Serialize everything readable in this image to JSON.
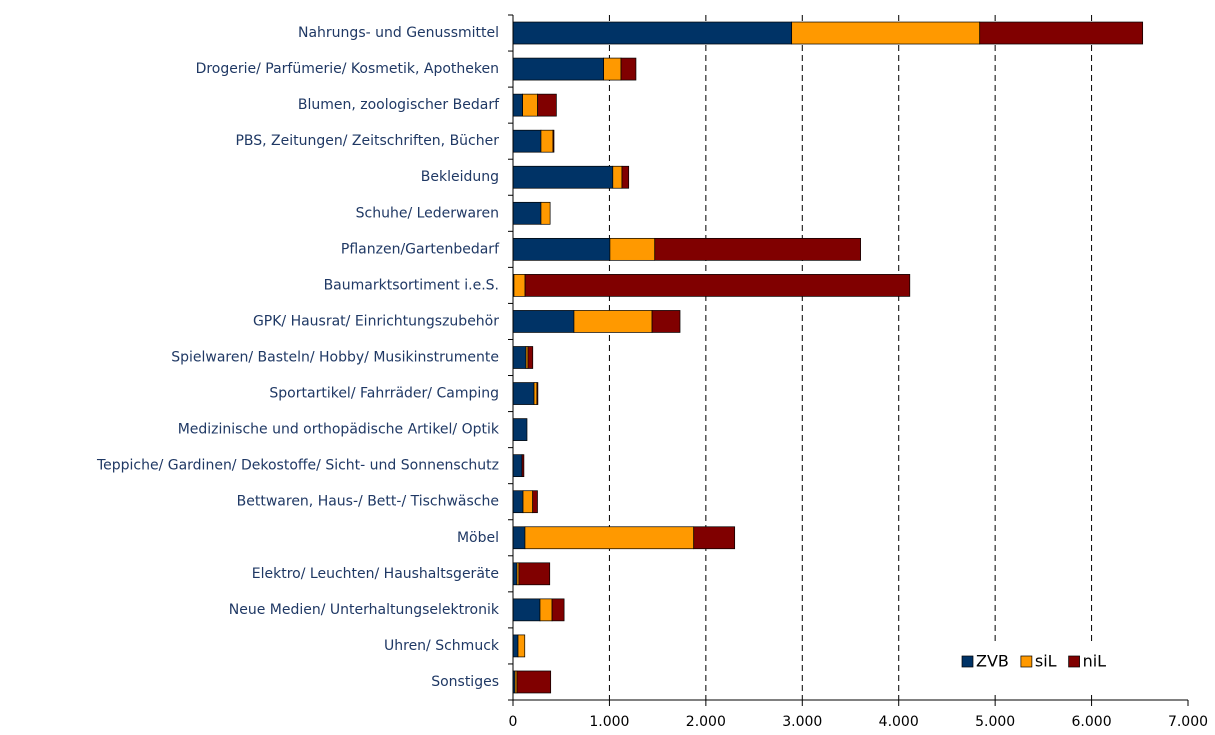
{
  "chart_data": {
    "type": "stacked_barh",
    "categories": [
      "Nahrungs- und Genussmittel",
      "Drogerie/ Parfümerie/ Kosmetik, Apotheken",
      "Blumen, zoologischer Bedarf",
      "PBS, Zeitungen/ Zeitschriften, Bücher",
      "Bekleidung",
      "Schuhe/ Lederwaren",
      "Pflanzen/Gartenbedarf",
      "Baumarktsortiment i.e.S.",
      "GPK/ Hausrat/ Einrichtungszubehör",
      "Spielwaren/ Basteln/ Hobby/ Musikinstrumente",
      "Sportartikel/ Fahrräder/ Camping",
      "Medizinische und orthopädische Artikel/ Optik",
      "Teppiche/ Gardinen/ Dekostoffe/ Sicht- und Sonnenschutz",
      "Bettwaren, Haus-/ Bett-/ Tischwäsche",
      "Möbel",
      "Elektro/ Leuchten/ Haushaltsgeräte",
      "Neue Medien/ Unterhaltungselektronik",
      "Uhren/ Schmuck",
      "Sonstiges"
    ],
    "series": [
      {
        "name": "ZVB",
        "color": "#003366",
        "values": [
          2890,
          940,
          100,
          290,
          1035,
          290,
          1005,
          10,
          632,
          135,
          218,
          145,
          93,
          104,
          124,
          41,
          280,
          52,
          21
        ]
      },
      {
        "name": "siL",
        "color": "#ff9900",
        "values": [
          1950,
          180,
          155,
          125,
          95,
          95,
          465,
          115,
          810,
          20,
          30,
          0,
          0,
          100,
          1750,
          20,
          125,
          70,
          20
        ]
      },
      {
        "name": "niL",
        "color": "#800000",
        "values": [
          1690,
          155,
          195,
          10,
          70,
          0,
          2135,
          3990,
          290,
          50,
          10,
          0,
          20,
          50,
          425,
          320,
          125,
          0,
          350
        ]
      }
    ],
    "xlim": [
      0,
      7000
    ],
    "xticks": [
      0,
      {
        "value": 1000,
        "label": "1.000"
      },
      {
        "value": 2000,
        "label": "2.000"
      },
      {
        "value": 3000,
        "label": "3.000"
      },
      {
        "value": 4000,
        "label": "4.000"
      },
      {
        "value": 5000,
        "label": "5.000"
      },
      {
        "value": 6000,
        "label": "6.000"
      },
      {
        "value": 7000,
        "label": "7.000"
      }
    ],
    "grid": true,
    "legend": "lower right"
  }
}
